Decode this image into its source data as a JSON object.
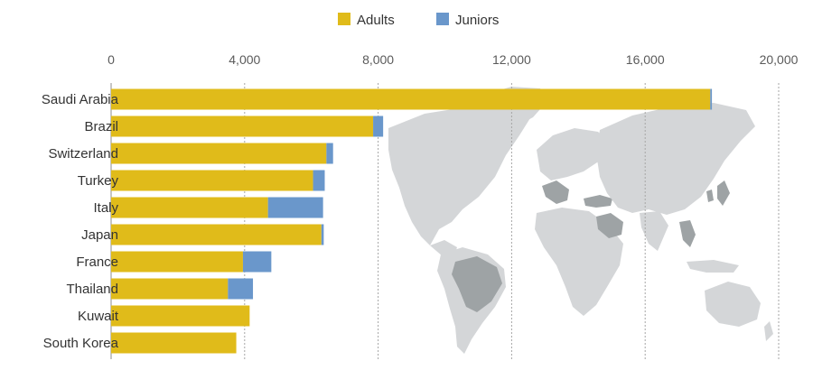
{
  "chart_data": {
    "type": "bar",
    "orientation": "horizontal",
    "stacked": true,
    "categories": [
      "Saudi Arabia",
      "Brazil",
      "Switzerland",
      "Turkey",
      "Italy",
      "Japan",
      "France",
      "Thailand",
      "Kuwait",
      "South Korea"
    ],
    "series": [
      {
        "name": "Adults",
        "color": "#e0bb1a",
        "values": [
          17950,
          7850,
          6450,
          6050,
          4700,
          6300,
          3950,
          3500,
          4150,
          3750
        ]
      },
      {
        "name": "Juniors",
        "color": "#6a97cb",
        "values": [
          50,
          300,
          200,
          350,
          1650,
          70,
          850,
          750,
          0,
          0
        ]
      }
    ],
    "xlim": [
      0,
      20000
    ],
    "xticks": [
      0,
      4000,
      8000,
      12000,
      16000,
      20000
    ],
    "xtick_labels": [
      "0",
      "4,000",
      "8,000",
      "12,000",
      "16,000",
      "20,000"
    ],
    "axis_position": "top",
    "grid": "vertical dashed",
    "legend_position": "top-center",
    "background": "world-map",
    "highlight_map_color": "#9ea3a5",
    "map_color": "#d4d6d8"
  }
}
